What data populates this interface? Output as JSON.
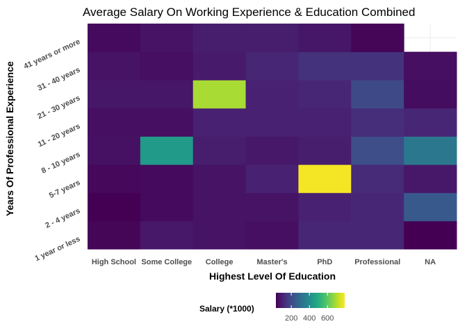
{
  "chart_data": {
    "type": "heatmap",
    "title": "Average Salary On Working Experience & Education Combined",
    "xlabel": "Highest Level Of Education",
    "ylabel": "Years Of Professional Experience",
    "x_categories": [
      "High School",
      "Some College",
      "College",
      "Master's",
      "PhD",
      "Professional",
      "NA"
    ],
    "y_categories": [
      "1 year or less",
      "2 - 4 years",
      "5-7 years",
      "8 - 10 years",
      "11 - 20 years",
      "21 - 30 years",
      "31 - 40 years",
      "41 years or more"
    ],
    "values": [
      [
        40,
        80,
        70,
        60,
        110,
        110,
        30
      ],
      [
        30,
        50,
        70,
        70,
        100,
        110,
        240
      ],
      [
        45,
        50,
        70,
        100,
        780,
        120,
        80
      ],
      [
        65,
        440,
        90,
        80,
        90,
        210,
        330
      ],
      [
        60,
        60,
        100,
        100,
        100,
        130,
        110
      ],
      [
        75,
        75,
        690,
        100,
        110,
        200,
        55
      ],
      [
        70,
        60,
        85,
        110,
        140,
        140,
        60
      ],
      [
        50,
        70,
        90,
        90,
        75,
        40,
        null
      ]
    ],
    "color_scale": "viridis",
    "value_range": [
      30,
      790
    ],
    "legend": {
      "title": "Salary (*1000)",
      "ticks": [
        200,
        400,
        600
      ],
      "position": "bottom"
    },
    "grid": true
  }
}
